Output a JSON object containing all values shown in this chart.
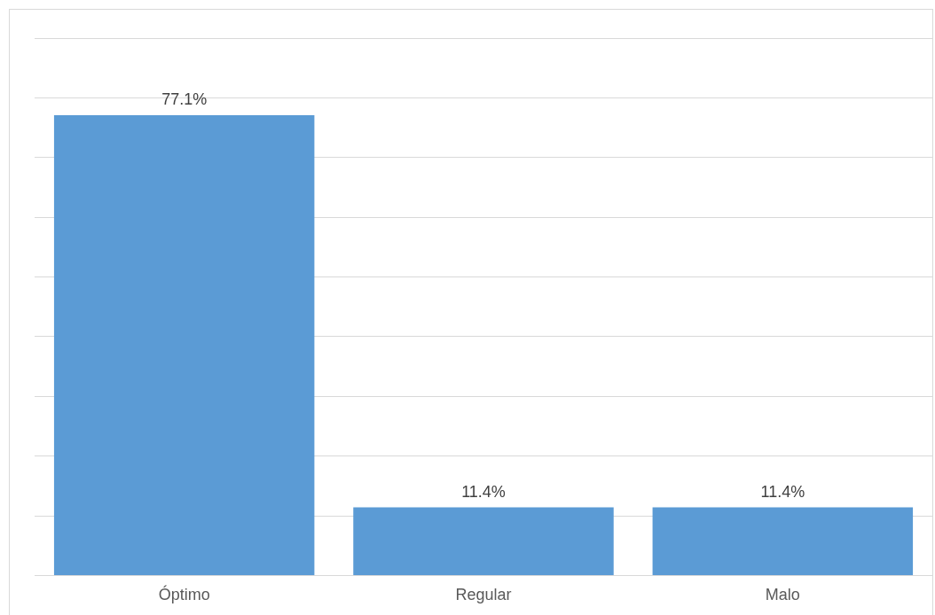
{
  "chart_data": {
    "type": "bar",
    "categories": [
      "Óptimo",
      "Regular",
      "Malo"
    ],
    "values": [
      77.1,
      11.4,
      11.4
    ],
    "value_labels": [
      "77.1%",
      "11.4%",
      "11.4%"
    ],
    "color": "#5b9bd5",
    "ylim": [
      0,
      90
    ],
    "grid": "y",
    "tick_labels": "x",
    "legend": false
  }
}
